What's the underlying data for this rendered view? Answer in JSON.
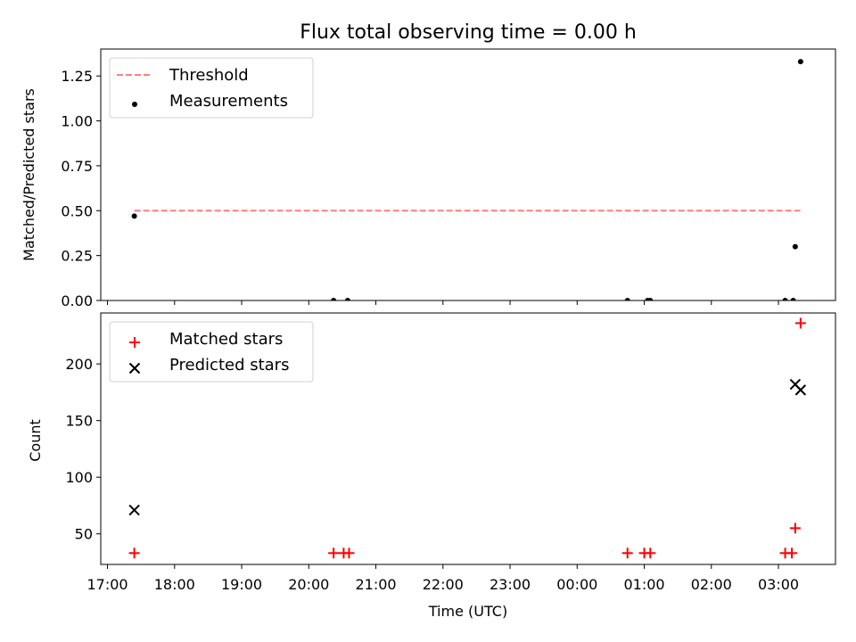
{
  "chart_data": {
    "title": "Flux total observing time = 0.00 h",
    "xlabel": "Time (UTC)",
    "x_tick_labels": [
      "17:00",
      "18:00",
      "19:00",
      "20:00",
      "21:00",
      "22:00",
      "23:00",
      "00:00",
      "01:00",
      "02:00",
      "03:00"
    ],
    "x_tick_hours": [
      17,
      18,
      19,
      20,
      21,
      22,
      23,
      24,
      25,
      26,
      27
    ],
    "xlim_hours": [
      16.9,
      27.85
    ],
    "panels": [
      {
        "type": "scatter",
        "ylabel": "Matched/Predicted stars",
        "ylim": [
          0,
          1.4
        ],
        "y_ticks": [
          0,
          0.25,
          0.5,
          0.75,
          1.0,
          1.25
        ],
        "y_tick_labels": [
          "0.00",
          "0.25",
          "0.50",
          "0.75",
          "1.00",
          "1.25"
        ],
        "legend": {
          "placement": "top-left",
          "entries": [
            "Threshold",
            "Measurements"
          ]
        },
        "series": [
          {
            "name": "Threshold",
            "kind": "dashed-line",
            "color": "#ff7f7f",
            "x_hours": [
              17.4,
              27.33
            ],
            "y": [
              0.5,
              0.5
            ]
          },
          {
            "name": "Measurements",
            "kind": "dot",
            "color": "#000000",
            "x_hours": [
              17.4,
              20.37,
              20.58,
              24.75,
              25.05,
              25.09,
              27.1,
              27.22,
              27.25,
              27.33
            ],
            "y": [
              0.47,
              0.0,
              0.0,
              0.0,
              0.0,
              0.0,
              0.0,
              0.0,
              0.3,
              1.33
            ]
          }
        ]
      },
      {
        "type": "scatter",
        "ylabel": "Count",
        "ylim": [
          23,
          245
        ],
        "y_ticks": [
          50,
          100,
          150,
          200
        ],
        "y_tick_labels": [
          "50",
          "100",
          "150",
          "200"
        ],
        "legend": {
          "placement": "top-left",
          "entries": [
            "Matched stars",
            "Predicted stars"
          ]
        },
        "series": [
          {
            "name": "Matched stars",
            "kind": "plus",
            "color": "#ff0000",
            "x_hours": [
              17.4,
              20.37,
              20.52,
              20.6,
              24.75,
              25.0,
              25.09,
              27.1,
              27.2,
              27.25,
              27.33
            ],
            "y": [
              33,
              33,
              33,
              33,
              33,
              33,
              33,
              33,
              33,
              55,
              236
            ]
          },
          {
            "name": "Predicted stars",
            "kind": "x",
            "color": "#000000",
            "x_hours": [
              17.4,
              27.25,
              27.33
            ],
            "y": [
              71,
              182,
              177
            ]
          }
        ]
      }
    ]
  }
}
